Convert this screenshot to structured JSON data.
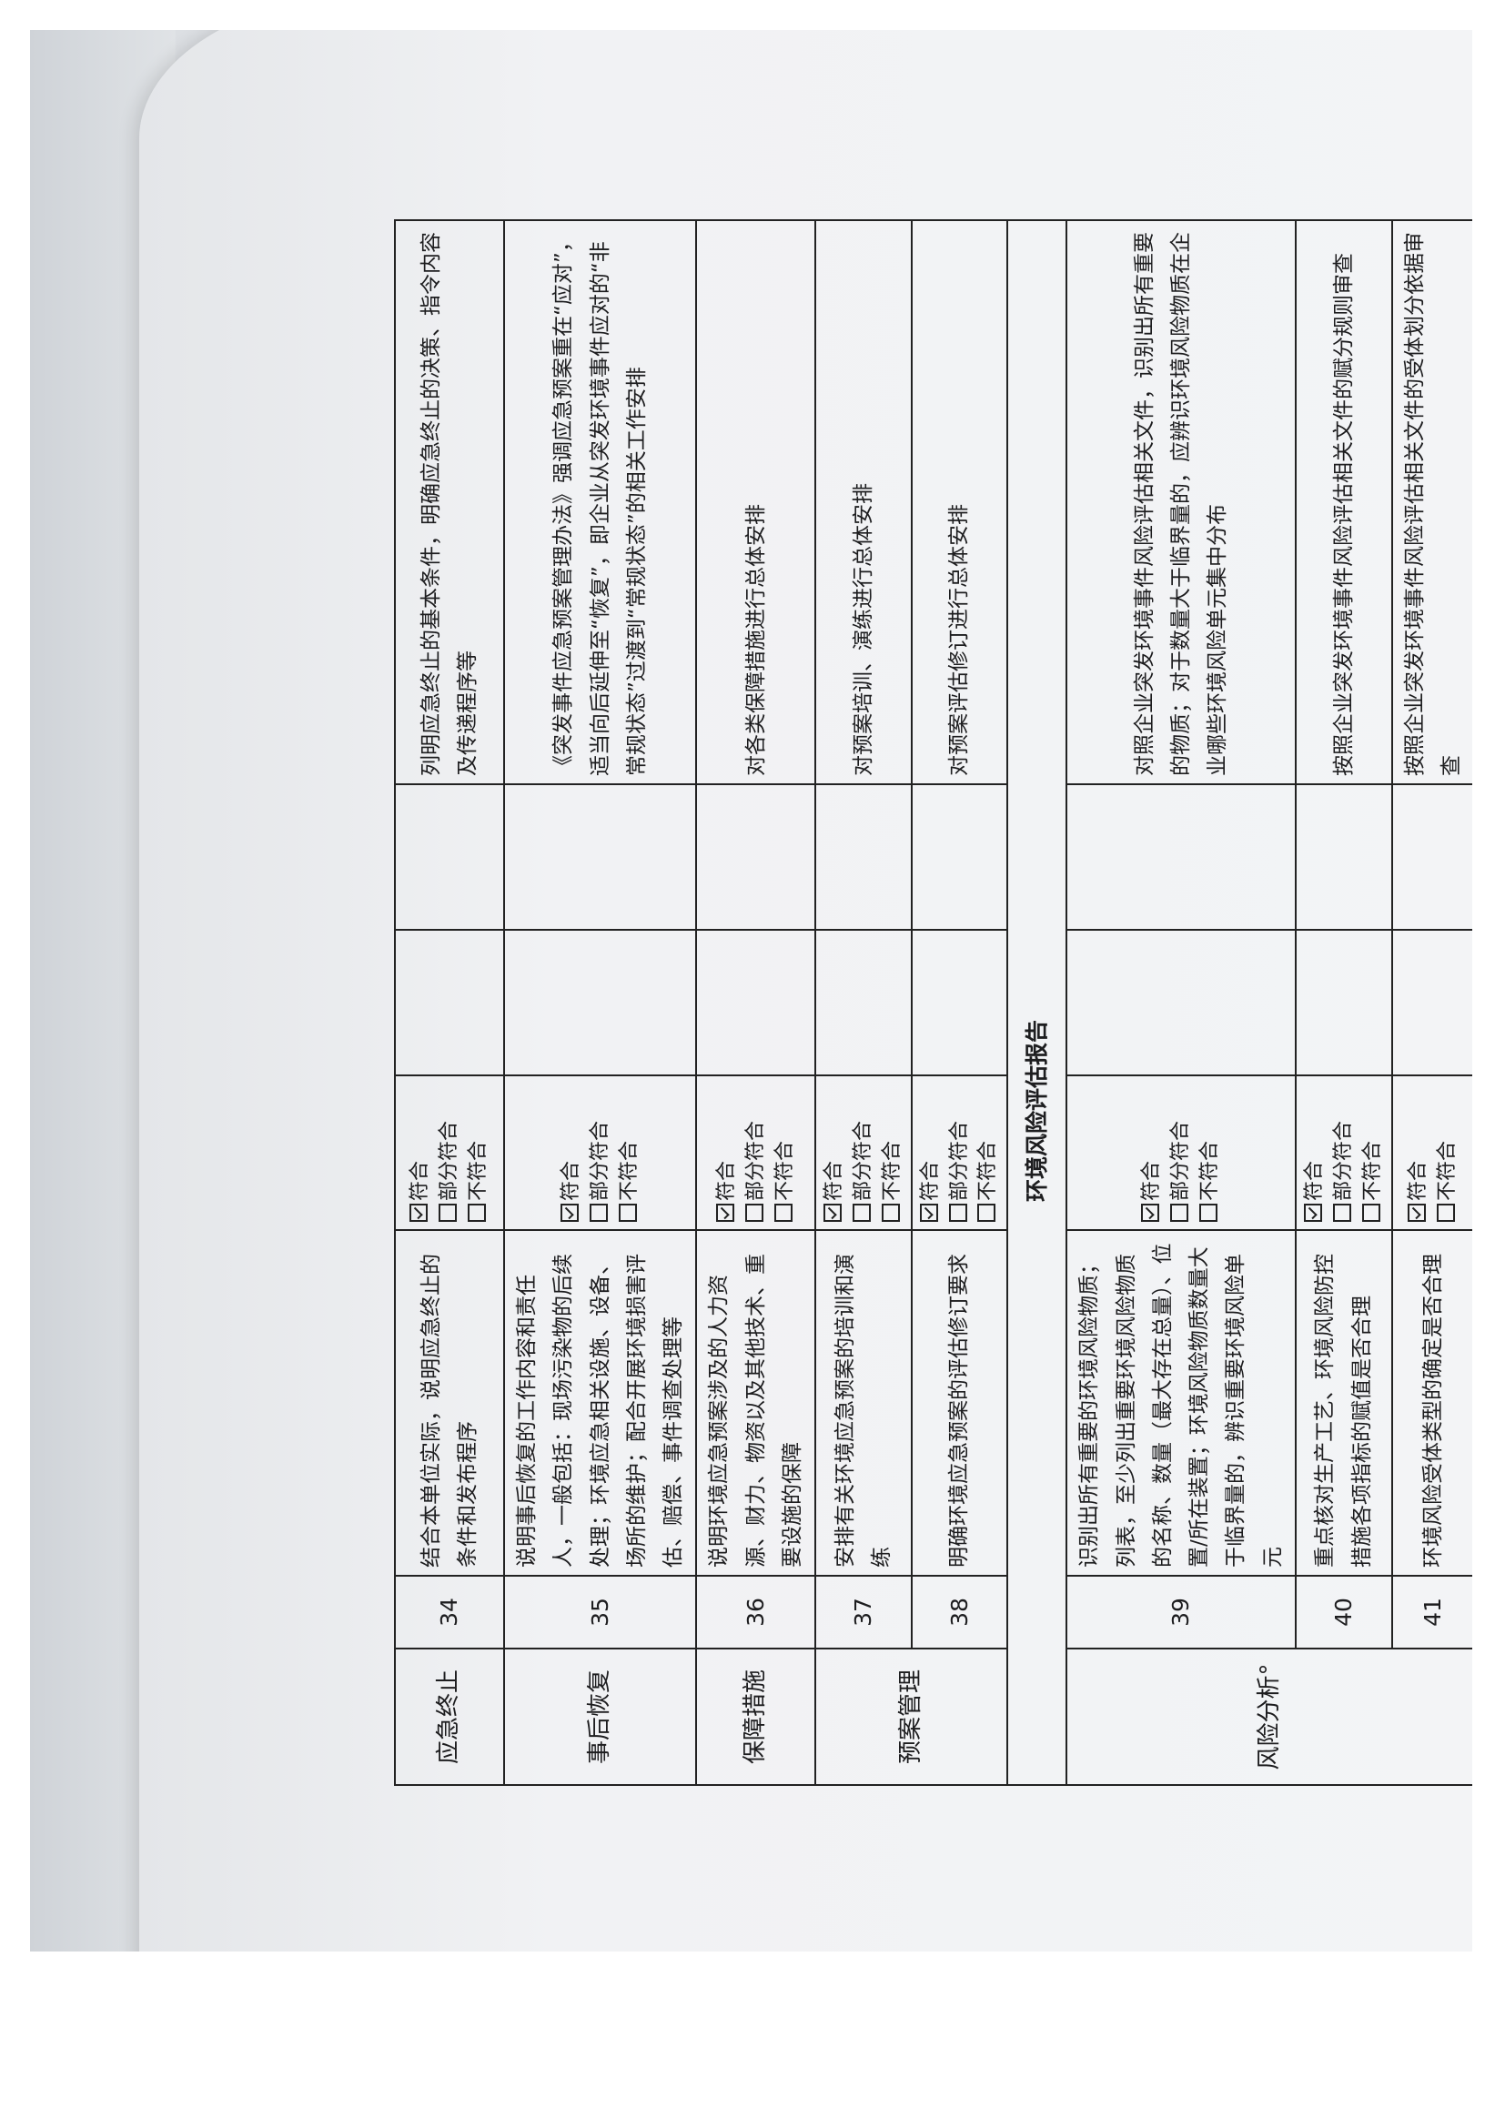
{
  "section_title": "环境风险评估报告",
  "check_labels": {
    "yes": "符合",
    "partial": "部分符合",
    "no": "不符合"
  },
  "rows_before": [
    {
      "category": "应急终止",
      "num": "34",
      "content": "结合本单位实际，说明应急终止的条件和发布程序",
      "checks": [
        {
          "label": "符合",
          "checked": true
        },
        {
          "label": "部分符合",
          "checked": false
        },
        {
          "label": "不符合",
          "checked": false
        }
      ],
      "guidance": "列明应急终止的基本条件，明确应急终止的决策、指令内容及传递程序等"
    },
    {
      "category": "事后恢复",
      "num": "35",
      "content": "说明事后恢复的工作内容和责任人，一般包括：现场污染物的后续处理；环境应急相关设施、设备、场所的维护；配合开展环境损害评估、赔偿、事件调查处理等",
      "checks": [
        {
          "label": "符合",
          "checked": true
        },
        {
          "label": "部分符合",
          "checked": false
        },
        {
          "label": "不符合",
          "checked": false
        }
      ],
      "guidance": "《突发事件应急预案管理办法》强调应急预案重在“应对”，适当向后延伸至“恢复”，即企业从突发环境事件应对的“非常规状态”过渡到“常规状态”的相关工作安排"
    },
    {
      "category": "保障措施",
      "num": "36",
      "content": "说明环境应急预案涉及的人力资源、财力、物资以及其他技术、重要设施的保障",
      "checks": [
        {
          "label": "符合",
          "checked": true
        },
        {
          "label": "部分符合",
          "checked": false
        },
        {
          "label": "不符合",
          "checked": false
        }
      ],
      "guidance": "对各类保障措施进行总体安排"
    },
    {
      "category": "预案管理",
      "num": "37",
      "content": "安排有关环境应急预案的培训和演练",
      "checks": [
        {
          "label": "符合",
          "checked": true
        },
        {
          "label": "部分符合",
          "checked": false
        },
        {
          "label": "不符合",
          "checked": false
        }
      ],
      "guidance": "对预案培训、演练进行总体安排"
    },
    {
      "category": "",
      "num": "38",
      "content": "明确环境应急预案的评估修订要求",
      "checks": [
        {
          "label": "符合",
          "checked": true
        },
        {
          "label": "部分符合",
          "checked": false
        },
        {
          "label": "不符合",
          "checked": false
        }
      ],
      "guidance": "对预案评估修订进行总体安排"
    }
  ],
  "rows_after": [
    {
      "category": "风险分析°",
      "num": "39",
      "content": "识别出所有重要的环境风险物质；列表，至少列出重要环境风险物质的名称、数量（最大存在总量）、位置/所在装置；环境风险物质数量大于临界量的，辨识重要环境风险单元",
      "checks": [
        {
          "label": "符合",
          "checked": true
        },
        {
          "label": "部分符合",
          "checked": false
        },
        {
          "label": "不符合",
          "checked": false
        }
      ],
      "guidance": "对照企业突发环境事件风险评估相关文件，识别出所有重要的物质；对于数量大于临界量的，应辨识环境风险物质在企业哪些环境风险单元集中分布"
    },
    {
      "category": "",
      "num": "40",
      "content": "重点核对生产工艺、环境风险防控措施各项指标的赋值是否合理",
      "checks": [
        {
          "label": "符合",
          "checked": true
        },
        {
          "label": "部分符合",
          "checked": false
        },
        {
          "label": "不符合",
          "checked": false
        }
      ],
      "guidance": "按照企业突发环境事件风险评估相关文件的赋分规则审查"
    },
    {
      "category": "",
      "num": "41",
      "content": "环境风险受体类型的确定是否合理",
      "checks": [
        {
          "label": "符合",
          "checked": true
        },
        {
          "label": "不符合",
          "checked": false
        }
      ],
      "guidance": "按照企业突发环境事件风险评估相关文件的受体划分依据审查"
    }
  ]
}
